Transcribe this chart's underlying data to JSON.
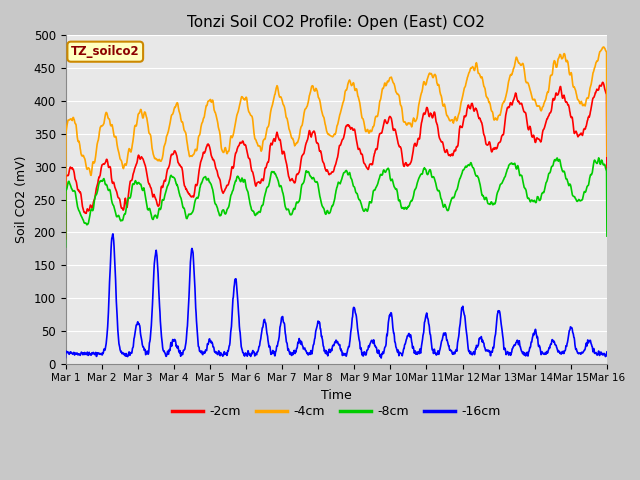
{
  "title": "Tonzi Soil CO2 Profile: Open (East) CO2",
  "xlabel": "Time",
  "ylabel": "Soil CO2 (mV)",
  "ylim": [
    0,
    500
  ],
  "xlim": [
    0,
    15
  ],
  "xtick_labels": [
    "Mar 1",
    "Mar 2",
    "Mar 3",
    "Mar 4",
    "Mar 5",
    "Mar 6",
    "Mar 7",
    "Mar 8",
    "Mar 9",
    "Mar 10",
    "Mar 11",
    "Mar 12",
    "Mar 13",
    "Mar 14",
    "Mar 15",
    "Mar 16"
  ],
  "series_labels": [
    "-2cm",
    "-4cm",
    "-8cm",
    "-16cm"
  ],
  "series_colors": [
    "#ff0000",
    "#ffa500",
    "#00cc00",
    "#0000ff"
  ],
  "line_width": 1.2,
  "fig_bg": "#c8c8c8",
  "plot_bg": "#e8e8e8",
  "grid_color": "#ffffff",
  "title_fontsize": 11,
  "annot_text": "TZ_soilco2",
  "annot_color": "#8b0000",
  "annot_bg": "#ffffc0",
  "annot_edge": "#cc8800"
}
